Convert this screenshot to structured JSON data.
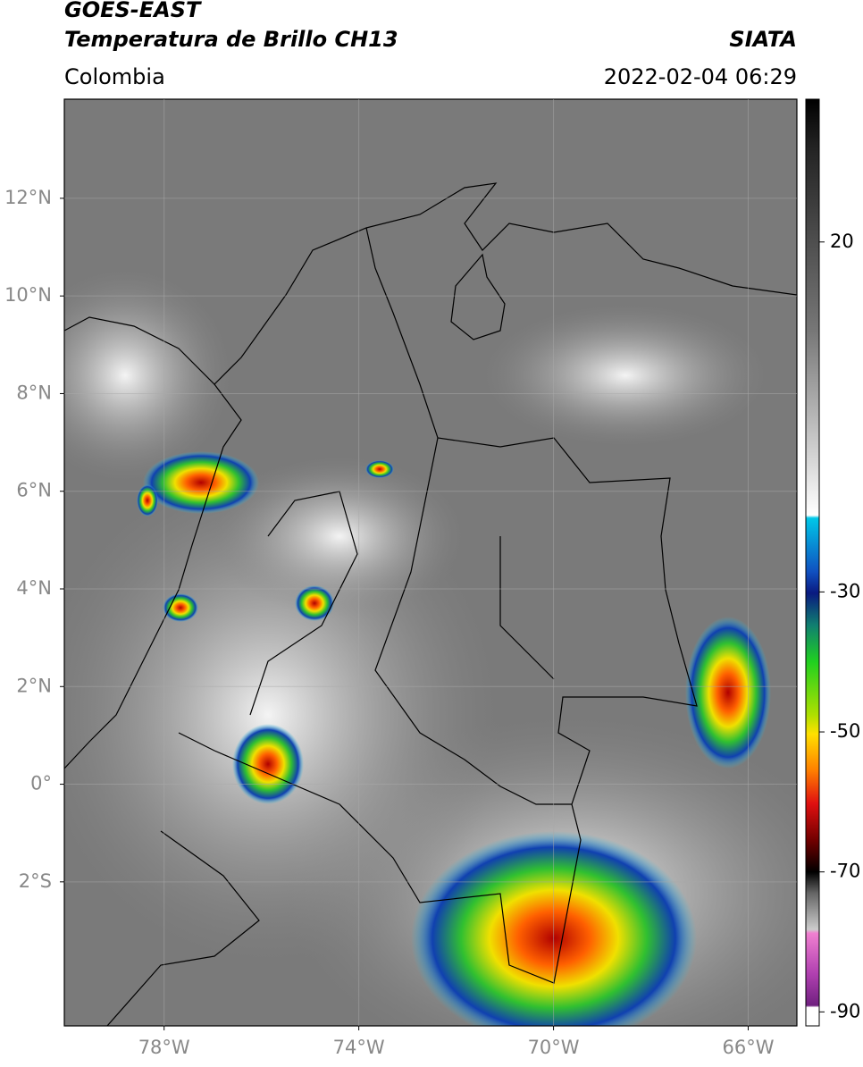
{
  "header": {
    "title": "GOES-EAST",
    "subtitle": "Temperatura de Brillo CH13",
    "source": "SIATA",
    "region": "Colombia",
    "datetime": "2022-02-04 06:29"
  },
  "map": {
    "xlim": [
      -80.05,
      -65.0
    ],
    "ylim": [
      -4.95,
      14.03
    ],
    "xticks": [
      {
        "value": -78,
        "label": "78°W"
      },
      {
        "value": -74,
        "label": "74°W"
      },
      {
        "value": -70,
        "label": "70°W"
      },
      {
        "value": -66,
        "label": "66°W"
      }
    ],
    "yticks": [
      {
        "value": 12,
        "label": "12°N"
      },
      {
        "value": 10,
        "label": "10°N"
      },
      {
        "value": 8,
        "label": "8°N"
      },
      {
        "value": 6,
        "label": "6°N"
      },
      {
        "value": 4,
        "label": "4°N"
      },
      {
        "value": 2,
        "label": "2°N"
      },
      {
        "value": 0,
        "label": "0°"
      },
      {
        "value": -2,
        "label": "2°S"
      }
    ],
    "grid": true
  },
  "colorbar": {
    "lim": [
      -92,
      40.4
    ],
    "ticks": [
      20,
      -30,
      -50,
      -70,
      -90
    ]
  }
}
